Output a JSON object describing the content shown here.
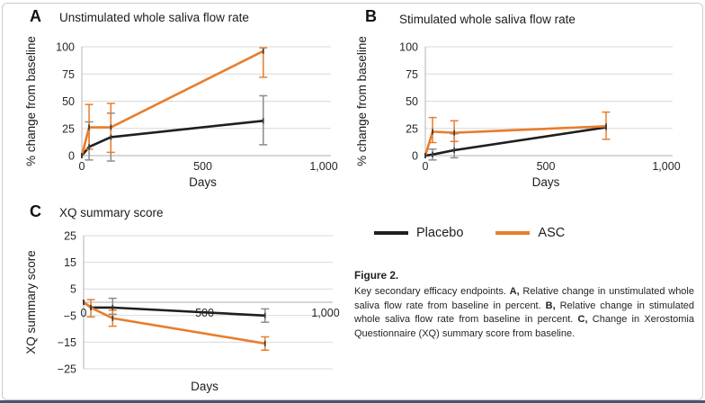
{
  "figure": {
    "caption_title": "Figure 2.",
    "caption_segments": [
      {
        "text": "Key secondary efficacy endpoints. ",
        "bold": false
      },
      {
        "text": "A,",
        "bold": true
      },
      {
        "text": " Relative change in unstimulated whole saliva flow rate from baseline in percent. ",
        "bold": false
      },
      {
        "text": "B,",
        "bold": true
      },
      {
        "text": " Relative change in stimulated whole saliva flow rate from baseline in percent. ",
        "bold": false
      },
      {
        "text": "C,",
        "bold": true
      },
      {
        "text": " Change in Xerostomia Questionnaire (XQ) summary score from baseline.",
        "bold": false
      }
    ]
  },
  "legend": {
    "items": [
      {
        "label": "Placebo",
        "color": "#1f1f1f"
      },
      {
        "label": "ASC",
        "color": "#e87d2b"
      }
    ]
  },
  "colors": {
    "placebo": "#1f1f1f",
    "asc": "#e87d2b",
    "placebo_error": "#8c8c8c",
    "gridline": "#d9d9d9",
    "axis": "#bfbfbf",
    "tick_text": "#262626"
  },
  "chart_data": [
    {
      "panel_label": "A",
      "type": "line",
      "title": "Unstimulated whole saliva flow rate",
      "xlabel": "Days",
      "ylabel": "% change from baseline",
      "x": [
        0,
        30,
        120,
        750
      ],
      "xtick_values": [
        0,
        500,
        1000
      ],
      "xtick_labels": [
        "0",
        "500",
        "1,000"
      ],
      "ylim": [
        0,
        100
      ],
      "ytick_values": [
        0,
        25,
        50,
        75,
        100
      ],
      "ytick_labels": [
        "0",
        "25",
        "50",
        "75",
        "100"
      ],
      "axis_cross": 0,
      "series": [
        {
          "name": "Placebo",
          "color": "#1f1f1f",
          "error_color": "#8c8c8c",
          "values": [
            0,
            8,
            17,
            32
          ],
          "err_lo": [
            null,
            -4,
            -5,
            10
          ],
          "err_hi": [
            null,
            31,
            39,
            55
          ]
        },
        {
          "name": "ASC",
          "color": "#e87d2b",
          "error_color": "#e87d2b",
          "values": [
            0,
            26,
            26,
            96
          ],
          "err_lo": [
            null,
            6,
            3,
            72
          ],
          "err_hi": [
            null,
            47,
            48,
            99
          ]
        }
      ]
    },
    {
      "panel_label": "B",
      "type": "line",
      "title": "Stimulated whole saliva flow rate",
      "xlabel": "Days",
      "ylabel": "% change from baseline",
      "x": [
        0,
        30,
        120,
        750
      ],
      "xtick_values": [
        0,
        500,
        1000
      ],
      "xtick_labels": [
        "0",
        "500",
        "1,000"
      ],
      "ylim": [
        0,
        100
      ],
      "ytick_values": [
        0,
        25,
        50,
        75,
        100
      ],
      "ytick_labels": [
        "0",
        "25",
        "50",
        "75",
        "100"
      ],
      "axis_cross": 0,
      "series": [
        {
          "name": "Placebo",
          "color": "#1f1f1f",
          "error_color": "#8c8c8c",
          "values": [
            0,
            1,
            5,
            26
          ],
          "err_lo": [
            null,
            -4,
            -2,
            null
          ],
          "err_hi": [
            null,
            6,
            20,
            null
          ]
        },
        {
          "name": "ASC",
          "color": "#e87d2b",
          "error_color": "#e87d2b",
          "values": [
            0,
            22,
            21,
            27
          ],
          "err_lo": [
            null,
            12,
            13,
            15
          ],
          "err_hi": [
            null,
            35,
            32,
            40
          ]
        }
      ]
    },
    {
      "panel_label": "C",
      "type": "line",
      "title": "XQ summary score",
      "xlabel": "Days",
      "ylabel": "XQ summary score",
      "x": [
        0,
        30,
        120,
        750
      ],
      "xtick_values": [
        0,
        500,
        1000
      ],
      "xtick_labels": [
        "0",
        "500",
        "1,000"
      ],
      "ylim": [
        -25,
        25
      ],
      "ytick_values": [
        -25,
        -15,
        -5,
        5,
        15,
        25
      ],
      "ytick_labels": [
        "−25",
        "−15",
        "−5",
        "5",
        "15",
        "25"
      ],
      "axis_cross": 0,
      "series": [
        {
          "name": "Placebo",
          "color": "#1f1f1f",
          "error_color": "#8c8c8c",
          "values": [
            0,
            -2,
            -2,
            -5
          ],
          "err_lo": [
            null,
            null,
            -4.5,
            -7.5
          ],
          "err_hi": [
            null,
            null,
            1.5,
            -2.5
          ]
        },
        {
          "name": "ASC",
          "color": "#e87d2b",
          "error_color": "#e87d2b",
          "values": [
            0,
            -2,
            -6,
            -15.5
          ],
          "err_lo": [
            null,
            -5.5,
            -9,
            -18
          ],
          "err_hi": [
            null,
            1,
            -3,
            -13
          ]
        }
      ]
    }
  ]
}
